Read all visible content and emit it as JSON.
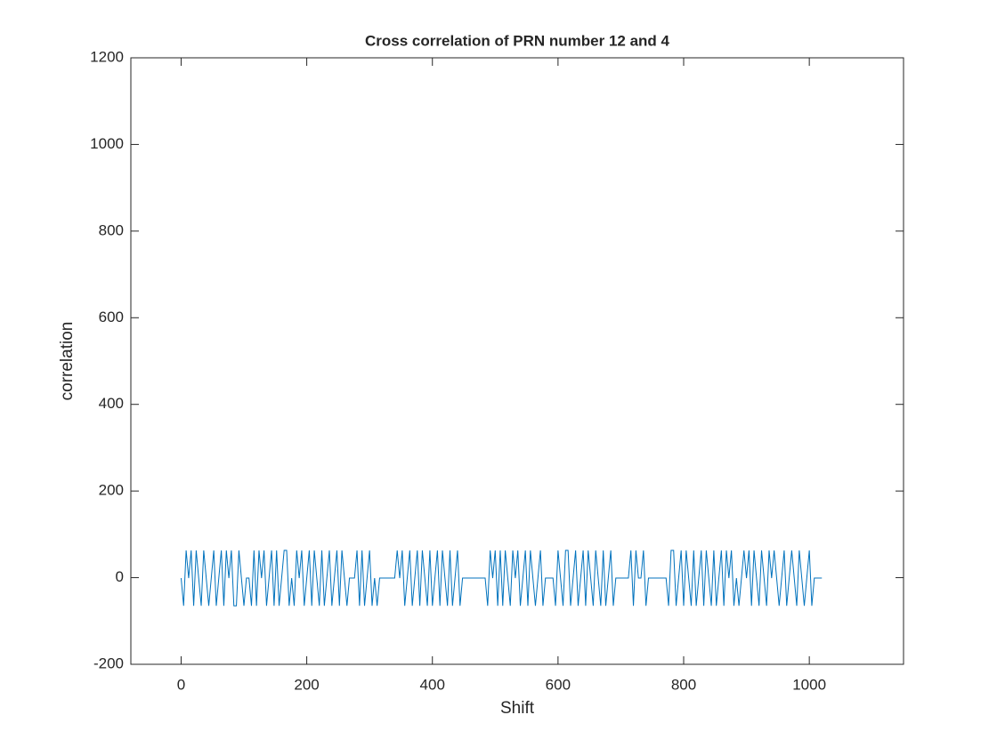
{
  "chart_data": {
    "type": "line",
    "title": "Cross correlation of PRN number 12 and 4",
    "x_label": "Shift",
    "y_label": "correlation",
    "color": "#0072bd",
    "x": [
      0,
      4,
      8,
      12,
      16,
      20,
      24,
      28,
      32,
      36,
      40,
      44,
      48,
      52,
      56,
      60,
      64,
      68,
      72,
      76,
      80,
      84,
      88,
      92,
      96,
      100,
      104,
      108,
      112,
      116,
      120,
      124,
      128,
      132,
      136,
      140,
      144,
      148,
      152,
      156,
      160,
      164,
      168,
      172,
      176,
      180,
      184,
      188,
      192,
      196,
      200,
      204,
      208,
      212,
      216,
      220,
      224,
      228,
      232,
      236,
      240,
      244,
      248,
      252,
      256,
      260,
      264,
      268,
      272,
      276,
      280,
      284,
      288,
      292,
      296,
      300,
      304,
      308,
      312,
      316,
      320,
      324,
      328,
      332,
      336,
      340,
      344,
      348,
      352,
      356,
      360,
      364,
      368,
      372,
      376,
      380,
      384,
      388,
      392,
      396,
      400,
      404,
      408,
      412,
      416,
      420,
      424,
      428,
      432,
      436,
      440,
      444,
      448,
      452,
      456,
      460,
      464,
      468,
      472,
      476,
      480,
      484,
      488,
      492,
      496,
      500,
      504,
      508,
      512,
      516,
      520,
      524,
      528,
      532,
      536,
      540,
      544,
      548,
      552,
      556,
      560,
      564,
      568,
      572,
      576,
      580,
      584,
      588,
      592,
      596,
      600,
      604,
      608,
      612,
      616,
      620,
      624,
      628,
      632,
      636,
      640,
      644,
      648,
      652,
      656,
      660,
      664,
      668,
      672,
      676,
      680,
      684,
      688,
      692,
      696,
      700,
      704,
      708,
      712,
      716,
      720,
      724,
      728,
      732,
      736,
      740,
      744,
      748,
      752,
      756,
      760,
      764,
      768,
      772,
      776,
      780,
      784,
      788,
      792,
      796,
      800,
      804,
      808,
      812,
      816,
      820,
      824,
      828,
      832,
      836,
      840,
      844,
      848,
      852,
      856,
      860,
      864,
      868,
      872,
      876,
      880,
      884,
      888,
      892,
      896,
      900,
      904,
      908,
      912,
      916,
      920,
      924,
      928,
      932,
      936,
      940,
      944,
      948,
      952,
      956,
      960,
      964,
      968,
      972,
      976,
      980,
      984,
      988,
      992,
      996,
      1000,
      1004,
      1008,
      1012,
      1016,
      1020
    ],
    "values": [
      -1,
      -65,
      63,
      -1,
      63,
      -65,
      63,
      -1,
      -65,
      63,
      -1,
      -65,
      -1,
      63,
      -65,
      -1,
      63,
      -65,
      63,
      -1,
      63,
      -65,
      -65,
      63,
      -1,
      -65,
      -1,
      -1,
      -65,
      63,
      -65,
      63,
      -1,
      63,
      -65,
      -1,
      63,
      -65,
      63,
      -65,
      -1,
      63,
      63,
      -65,
      -1,
      -65,
      63,
      -1,
      63,
      -65,
      -1,
      63,
      -65,
      63,
      -1,
      -65,
      63,
      -65,
      -1,
      63,
      -65,
      -1,
      63,
      -65,
      63,
      -1,
      -65,
      -1,
      -1,
      -1,
      63,
      -65,
      63,
      -65,
      -1,
      63,
      -65,
      -1,
      -65,
      -1,
      -1,
      -1,
      -1,
      -1,
      -1,
      -1,
      63,
      -1,
      63,
      -65,
      -1,
      63,
      -65,
      -1,
      63,
      -65,
      63,
      -1,
      -65,
      63,
      -65,
      -1,
      63,
      -65,
      63,
      -1,
      -65,
      63,
      -65,
      -1,
      63,
      -65,
      -1,
      -1,
      -1,
      -1,
      -1,
      -1,
      -1,
      -1,
      -1,
      -1,
      -65,
      63,
      -1,
      63,
      -65,
      63,
      -65,
      63,
      -1,
      -65,
      63,
      -1,
      63,
      -65,
      -1,
      63,
      -65,
      63,
      -1,
      -65,
      -1,
      63,
      -65,
      -1,
      -1,
      -1,
      -1,
      -65,
      63,
      -1,
      -65,
      63,
      63,
      -65,
      -1,
      63,
      -65,
      -1,
      63,
      -65,
      63,
      -1,
      -65,
      63,
      -1,
      -65,
      63,
      -65,
      -1,
      63,
      -65,
      -1,
      -1,
      -1,
      -1,
      -1,
      -1,
      63,
      -65,
      63,
      -1,
      -1,
      63,
      -65,
      -1,
      -1,
      -1,
      -1,
      -1,
      -1,
      -1,
      -1,
      -65,
      63,
      63,
      -65,
      -1,
      63,
      -65,
      63,
      -1,
      -65,
      63,
      -65,
      -1,
      63,
      -65,
      63,
      -1,
      -65,
      63,
      -65,
      -1,
      63,
      -65,
      63,
      -1,
      63,
      -65,
      -1,
      -65,
      -1,
      63,
      -1,
      63,
      -65,
      63,
      -1,
      -65,
      63,
      -1,
      -65,
      63,
      -1,
      63,
      -1,
      -65,
      -1,
      63,
      -65,
      -1,
      63,
      -1,
      -65,
      63,
      -1,
      -65,
      -1,
      63,
      -65,
      -1,
      -1,
      -1,
      -1
    ],
    "xlim": [
      -80,
      1150
    ],
    "ylim": [
      -200,
      1200
    ],
    "xticks": [
      0,
      200,
      400,
      600,
      800,
      1000
    ],
    "yticks": [
      -200,
      0,
      200,
      400,
      600,
      800,
      1000,
      1200
    ]
  }
}
